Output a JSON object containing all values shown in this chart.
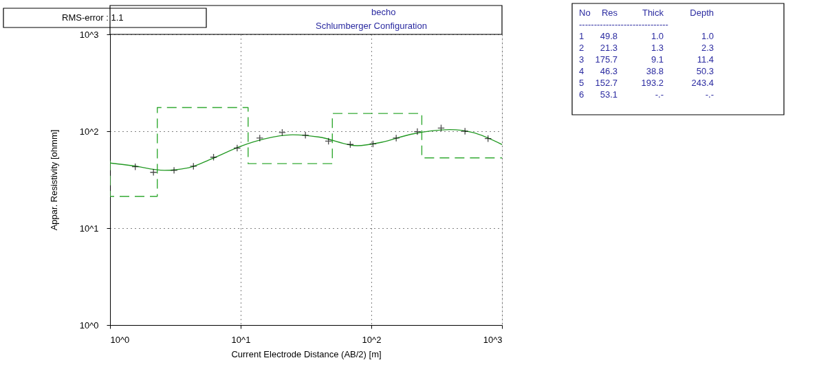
{
  "chart_data": {
    "type": "line",
    "title": "becho",
    "subtitle": "Schlumberger Configuration",
    "xlabel": "Current Electrode Distance (AB/2) [m]",
    "ylabel": "Appar. Resistivity [ohmm]",
    "log": "xy",
    "grid": true,
    "xlim": [
      1,
      1000
    ],
    "ylim": [
      1,
      1000
    ],
    "xticks": [
      {
        "value": 1,
        "label": "10^0"
      },
      {
        "value": 10,
        "label": "10^1"
      },
      {
        "value": 100,
        "label": "10^2"
      },
      {
        "value": 1000,
        "label": "10^3"
      }
    ],
    "yticks": [
      {
        "value": 1,
        "label": "10^0"
      },
      {
        "value": 10,
        "label": "10^1"
      },
      {
        "value": 100,
        "label": "10^2"
      },
      {
        "value": 1000,
        "label": "10^3"
      }
    ],
    "series": [
      {
        "type": "step",
        "line_style": "dashed",
        "marker": "none",
        "color": "#33aa33",
        "x": [
          1,
          1,
          2.3,
          11.4,
          50.3,
          243.4,
          1000
        ],
        "values": [
          49.8,
          21.3,
          175.7,
          46.3,
          152.7,
          53.1,
          53.1
        ]
      },
      {
        "line_style": "solid",
        "marker": "none",
        "color": "#229922",
        "x": [
          1,
          1.5,
          2.6,
          4,
          6,
          10,
          15,
          25,
          40,
          78,
          120,
          200,
          400,
          600,
          1000
        ],
        "values": [
          47,
          44,
          39.5,
          42,
          52,
          70,
          83,
          92,
          87,
          71,
          77,
          93,
          104,
          97,
          73
        ]
      },
      {
        "type": "scatter",
        "marker": "cross",
        "color": "#000000",
        "x": [
          1.56,
          2.15,
          3.09,
          4.35,
          6.2,
          9.4,
          14,
          20.8,
          31.3,
          47,
          69,
          103,
          155,
          225,
          342,
          521,
          782
        ],
        "values": [
          43,
          37.7,
          39.5,
          43.5,
          54,
          67,
          85,
          97,
          91,
          79,
          73,
          74,
          85,
          99,
          108,
          100,
          84
        ]
      }
    ],
    "annotations": [
      "RMS-error :  1.1",
      "No    Res   Thick  Depth",
      "------------------------------",
      " 1    49.8     1.0     1.0",
      " 2    21.3     1.3     2.3",
      " 3   175.7     9.1    11.4",
      " 4    46.3    38.8    50.3",
      " 5   152.7   193.2   243.4",
      " 6    53.1      -.-      -.-"
    ]
  }
}
